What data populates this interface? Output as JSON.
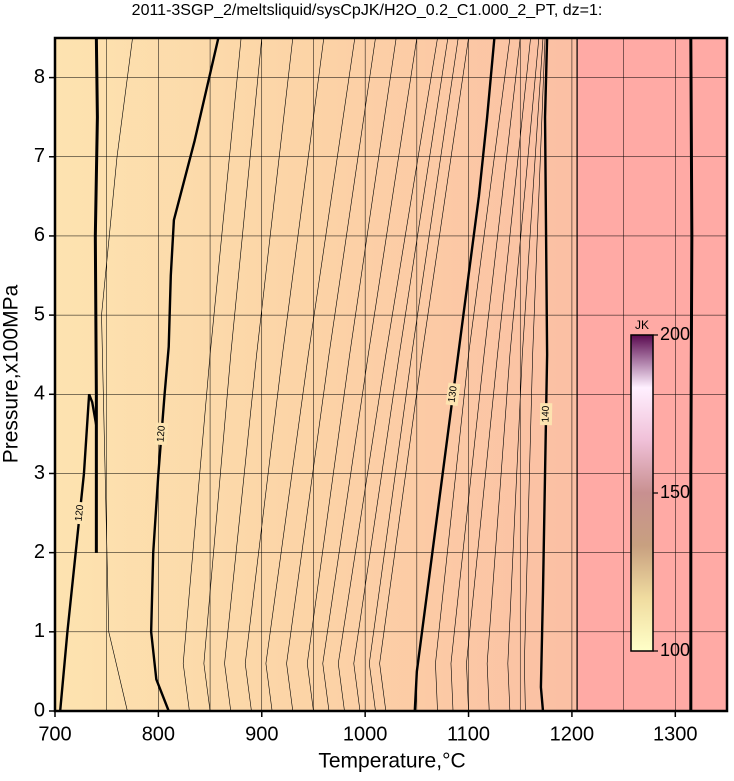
{
  "chart_data": {
    "type": "contour",
    "title": "2011-3SGP_2/meltsliquid/sysCpJK/H2O_0.2_C1.000_2_PT, dz=1:",
    "x_label": "Temperature,°C",
    "y_label": "Pressure,x100MPa",
    "xlim": [
      700,
      1350
    ],
    "ylim": [
      0,
      8.5
    ],
    "xticks": [
      700,
      800,
      900,
      1000,
      1100,
      1200,
      1300
    ],
    "yticks": [
      0,
      1,
      2,
      3,
      4,
      5,
      6,
      7,
      8
    ],
    "xminor_ticks": [
      750,
      850,
      950,
      1050,
      1150,
      1250,
      1350
    ],
    "grid": true,
    "field_colors": [
      "#fde3b0",
      "#fcd3a6",
      "#fbbfa4"
    ],
    "field_split_x": 1205,
    "field_high_color": "#ffaaa5",
    "contours": [
      {
        "level": 120,
        "x": [
          705,
          712,
          720,
          728,
          733,
          736,
          740
        ],
        "y": [
          0,
          1,
          2,
          3,
          4,
          3.9,
          3.6
        ]
      },
      {
        "level": 120,
        "x": [
          810,
          798,
          793,
          795,
          800,
          806,
          810,
          812,
          815,
          835,
          858
        ],
        "y": [
          0,
          0.4,
          1,
          2,
          3,
          4,
          4.6,
          5.5,
          6.2,
          7.2,
          8.5
        ]
      },
      {
        "level": 130,
        "x": [
          1048,
          1050,
          1060,
          1070,
          1080,
          1090,
          1100,
          1110,
          1118,
          1125
        ],
        "y": [
          0,
          0.5,
          1.5,
          2.5,
          3.5,
          4.5,
          5.5,
          6.5,
          7.5,
          8.5
        ]
      },
      {
        "level": 140,
        "x": [
          1172,
          1170,
          1172,
          1174,
          1176,
          1175,
          1174,
          1176
        ],
        "y": [
          0,
          0.3,
          1.5,
          3,
          4.5,
          6,
          7.5,
          8.5
        ]
      }
    ],
    "boundaries": [
      {
        "x": [
          740,
          740,
          739,
          741,
          740
        ],
        "y": [
          2,
          4,
          6,
          7.5,
          8.5
        ]
      },
      {
        "x": [
          1205,
          1205
        ],
        "y": [
          0,
          8.5
        ]
      },
      {
        "x": [
          1315,
          1315,
          1316,
          1315
        ],
        "y": [
          0,
          3,
          6,
          8.5
        ]
      }
    ],
    "thin_contours": [
      {
        "x": [
          830,
          824,
          850,
          880
        ],
        "y": [
          0,
          0.6,
          4.5,
          8.5
        ]
      },
      {
        "x": [
          850,
          844,
          870,
          900
        ],
        "y": [
          0,
          0.6,
          4.5,
          8.5
        ]
      },
      {
        "x": [
          870,
          864,
          895,
          930
        ],
        "y": [
          0,
          0.6,
          4.5,
          8.5
        ]
      },
      {
        "x": [
          890,
          884,
          920,
          960
        ],
        "y": [
          0,
          0.6,
          4.5,
          8.5
        ]
      },
      {
        "x": [
          910,
          904,
          945,
          990
        ],
        "y": [
          0,
          0.6,
          4.5,
          8.5
        ]
      },
      {
        "x": [
          930,
          924,
          965,
          1010
        ],
        "y": [
          0,
          0.6,
          4.5,
          8.5
        ]
      },
      {
        "x": [
          950,
          944,
          985,
          1030
        ],
        "y": [
          0,
          0.6,
          4.5,
          8.5
        ]
      },
      {
        "x": [
          965,
          959,
          1003,
          1050
        ],
        "y": [
          0,
          0.6,
          4.5,
          8.5
        ]
      },
      {
        "x": [
          980,
          974,
          1020,
          1070
        ],
        "y": [
          0,
          0.6,
          4.5,
          8.5
        ]
      },
      {
        "x": [
          995,
          989,
          1033,
          1080
        ],
        "y": [
          0,
          0.6,
          4.5,
          8.5
        ]
      },
      {
        "x": [
          1010,
          1004,
          1045,
          1090
        ],
        "y": [
          0,
          0.6,
          4.5,
          8.5
        ]
      },
      {
        "x": [
          1020,
          1014,
          1055,
          1100
        ],
        "y": [
          0,
          0.6,
          4.5,
          8.5
        ]
      },
      {
        "x": [
          1070,
          1068,
          1100,
          1140
        ],
        "y": [
          0,
          0.6,
          4.5,
          8.5
        ]
      },
      {
        "x": [
          1085,
          1083,
          1115,
          1150
        ],
        "y": [
          0,
          0.6,
          4.5,
          8.5
        ]
      },
      {
        "x": [
          1100,
          1098,
          1128,
          1160
        ],
        "y": [
          0,
          0.6,
          4.5,
          8.5
        ]
      },
      {
        "x": [
          1120,
          1118,
          1140,
          1168
        ],
        "y": [
          0,
          0.6,
          4.5,
          8.5
        ]
      },
      {
        "x": [
          1140,
          1138,
          1152,
          1172
        ],
        "y": [
          0,
          0.6,
          4.5,
          8.5
        ]
      },
      {
        "x": [
          1155,
          1154,
          1162,
          1174
        ],
        "y": [
          0,
          0.6,
          4.5,
          8.5
        ]
      },
      {
        "x": [
          770,
          752,
          745,
          760,
          775
        ],
        "y": [
          0,
          1,
          5,
          7,
          8.5
        ]
      }
    ],
    "colorbar": {
      "label": "JK",
      "lim": [
        100,
        200
      ],
      "ticks": [
        100,
        150,
        200
      ],
      "colors": [
        "#ffffc8",
        "#f0dca0",
        "#c8a080",
        "#c89090",
        "#f0c0d8",
        "#fff0ff",
        "#5a0a50"
      ]
    }
  }
}
